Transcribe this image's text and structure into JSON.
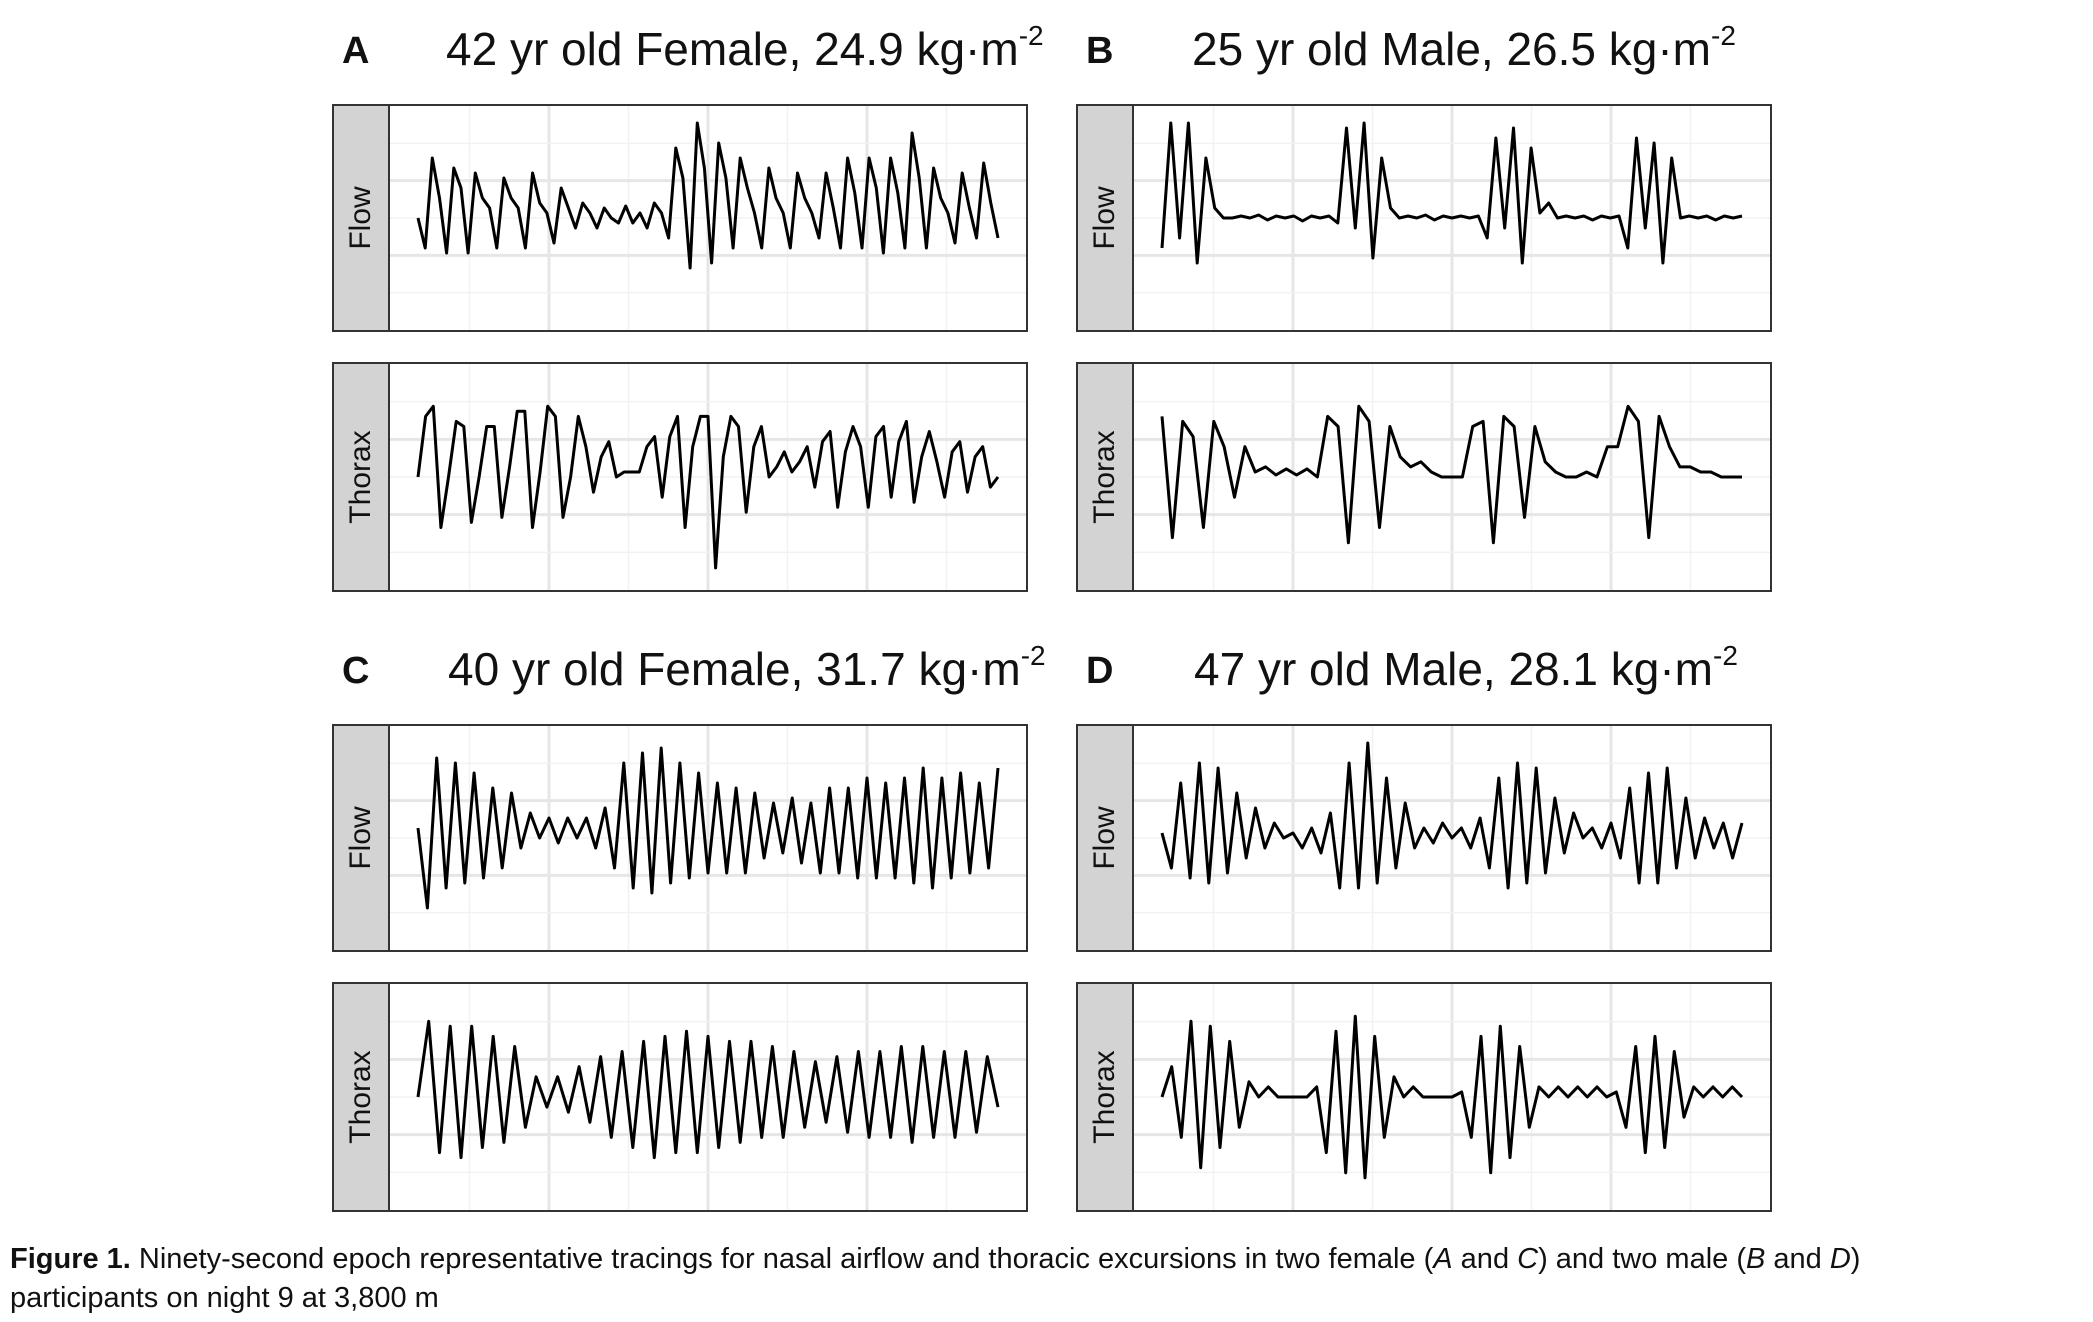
{
  "caption": {
    "label": "Figure 1.",
    "text_1": " Ninety-second epoch representative tracings for nasal airflow and thoracic excursions in two female (",
    "a": "A",
    "and_1": " and ",
    "c": "C",
    "text_2": ") and two male (",
    "b": "B",
    "and_2": " and ",
    "d": "D",
    "text_3": ")",
    "text_4": "participants on night 9 at 3,800 m"
  },
  "chart_data": [
    {
      "type": "line",
      "panel": "A",
      "title": "42 yr old Female, 24.9 kg·m",
      "title_sup": "-2",
      "facets": [
        {
          "label": "Flow",
          "series": [
            0,
            -0.3,
            0.6,
            0.2,
            -0.35,
            0.5,
            0.3,
            -0.35,
            0.45,
            0.2,
            0.1,
            -0.3,
            0.4,
            0.2,
            0.1,
            -0.3,
            0.45,
            0.15,
            0.05,
            -0.25,
            0.3,
            0.1,
            -0.1,
            0.15,
            0.05,
            -0.1,
            0.1,
            0,
            -0.05,
            0.12,
            -0.05,
            0.05,
            -0.1,
            0.15,
            0.05,
            -0.2,
            0.7,
            0.4,
            -0.5,
            0.95,
            0.5,
            -0.45,
            0.75,
            0.4,
            -0.3,
            0.6,
            0.3,
            0.05,
            -0.3,
            0.5,
            0.2,
            0.05,
            -0.3,
            0.45,
            0.2,
            0.05,
            -0.2,
            0.45,
            0.1,
            -0.3,
            0.6,
            0.25,
            -0.3,
            0.6,
            0.3,
            -0.35,
            0.6,
            0.25,
            -0.3,
            0.85,
            0.4,
            -0.3,
            0.5,
            0.2,
            0.05,
            -0.25,
            0.45,
            0.1,
            -0.2,
            0.55,
            0.15,
            -0.2
          ]
        },
        {
          "label": "Thorax",
          "series": [
            0,
            0.6,
            0.7,
            -0.5,
            0,
            0.55,
            0.5,
            -0.45,
            0,
            0.5,
            0.5,
            -0.4,
            0.1,
            0.65,
            0.65,
            -0.5,
            0.05,
            0.7,
            0.6,
            -0.4,
            0,
            0.6,
            0.3,
            -0.15,
            0.2,
            0.35,
            0,
            0.05,
            0.05,
            0.05,
            0.3,
            0.4,
            -0.2,
            0.4,
            0.6,
            -0.5,
            0.3,
            0.6,
            0.6,
            -0.9,
            0.2,
            0.6,
            0.5,
            -0.35,
            0.3,
            0.5,
            0,
            0.1,
            0.25,
            0.05,
            0.15,
            0.3,
            -0.1,
            0.35,
            0.45,
            -0.3,
            0.25,
            0.5,
            0.3,
            -0.3,
            0.4,
            0.5,
            -0.2,
            0.35,
            0.55,
            -0.25,
            0.2,
            0.45,
            0.15,
            -0.2,
            0.25,
            0.35,
            -0.15,
            0.2,
            0.3,
            -0.1,
            0
          ]
        }
      ]
    },
    {
      "type": "line",
      "panel": "B",
      "title": "25 yr old Male, 26.5 kg·m",
      "title_sup": "-2",
      "facets": [
        {
          "label": "Flow",
          "series": [
            -0.3,
            0.95,
            -0.2,
            0.95,
            -0.45,
            0.6,
            0.1,
            0,
            0,
            0.02,
            0,
            0.03,
            -0.02,
            0.02,
            0,
            0.02,
            -0.03,
            0.02,
            0,
            0.02,
            -0.05,
            0.9,
            -0.1,
            0.95,
            -0.4,
            0.6,
            0.1,
            0,
            0.02,
            0,
            0.03,
            -0.02,
            0.02,
            0,
            0.02,
            0,
            0.02,
            -0.2,
            0.8,
            -0.1,
            0.9,
            -0.45,
            0.7,
            0.05,
            0.15,
            0,
            0.02,
            0,
            0.02,
            -0.02,
            0.02,
            0,
            0.02,
            -0.3,
            0.8,
            -0.1,
            0.75,
            -0.45,
            0.6,
            0,
            0.02,
            0,
            0.02,
            -0.02,
            0.02,
            0,
            0.02
          ]
        },
        {
          "label": "Thorax",
          "series": [
            0.6,
            -0.6,
            0.55,
            0.4,
            -0.5,
            0.55,
            0.3,
            -0.2,
            0.3,
            0.05,
            0.1,
            0.02,
            0.08,
            0.02,
            0.08,
            0,
            0.6,
            0.5,
            -0.65,
            0.7,
            0.55,
            -0.5,
            0.5,
            0.2,
            0.1,
            0.15,
            0.05,
            0,
            0,
            0,
            0.5,
            0.55,
            -0.65,
            0.6,
            0.5,
            -0.4,
            0.5,
            0.15,
            0.05,
            0,
            0,
            0.05,
            0,
            0.3,
            0.3,
            0.7,
            0.55,
            -0.6,
            0.6,
            0.3,
            0.1,
            0.1,
            0.05,
            0.05,
            0,
            0,
            0
          ]
        }
      ]
    },
    {
      "type": "line",
      "panel": "C",
      "title": "40 yr old Female, 31.7 kg·m",
      "title_sup": "-2",
      "facets": [
        {
          "label": "Flow",
          "series": [
            0.1,
            -0.7,
            0.8,
            -0.5,
            0.75,
            -0.45,
            0.65,
            -0.4,
            0.5,
            -0.3,
            0.45,
            -0.1,
            0.25,
            0,
            0.2,
            -0.05,
            0.2,
            0,
            0.2,
            -0.1,
            0.3,
            -0.3,
            0.75,
            -0.5,
            0.85,
            -0.55,
            0.9,
            -0.45,
            0.75,
            -0.4,
            0.65,
            -0.35,
            0.55,
            -0.35,
            0.5,
            -0.35,
            0.45,
            -0.2,
            0.35,
            -0.15,
            0.4,
            -0.25,
            0.35,
            -0.35,
            0.5,
            -0.35,
            0.5,
            -0.4,
            0.6,
            -0.4,
            0.55,
            -0.4,
            0.6,
            -0.45,
            0.7,
            -0.5,
            0.6,
            -0.4,
            0.65,
            -0.35,
            0.55,
            -0.3,
            0.7
          ]
        },
        {
          "label": "Thorax",
          "series": [
            0,
            0.75,
            -0.55,
            0.7,
            -0.6,
            0.7,
            -0.5,
            0.6,
            -0.45,
            0.5,
            -0.3,
            0.2,
            -0.1,
            0.2,
            -0.15,
            0.3,
            -0.25,
            0.4,
            -0.4,
            0.45,
            -0.5,
            0.55,
            -0.6,
            0.6,
            -0.55,
            0.65,
            -0.55,
            0.6,
            -0.5,
            0.55,
            -0.45,
            0.55,
            -0.4,
            0.5,
            -0.4,
            0.45,
            -0.3,
            0.35,
            -0.25,
            0.4,
            -0.35,
            0.45,
            -0.4,
            0.45,
            -0.4,
            0.5,
            -0.45,
            0.5,
            -0.4,
            0.45,
            -0.4,
            0.45,
            -0.35,
            0.4,
            -0.1
          ]
        }
      ]
    },
    {
      "type": "line",
      "panel": "D",
      "title": "47 yr old Male, 28.1 kg·m",
      "title_sup": "-2",
      "facets": [
        {
          "label": "Flow",
          "series": [
            0.05,
            -0.3,
            0.55,
            -0.4,
            0.75,
            -0.45,
            0.7,
            -0.35,
            0.45,
            -0.2,
            0.3,
            -0.1,
            0.15,
            0,
            0.05,
            -0.1,
            0.1,
            -0.15,
            0.25,
            -0.5,
            0.75,
            -0.5,
            0.95,
            -0.45,
            0.6,
            -0.3,
            0.35,
            -0.1,
            0.1,
            -0.05,
            0.15,
            0,
            0.1,
            -0.1,
            0.2,
            -0.3,
            0.6,
            -0.5,
            0.75,
            -0.45,
            0.7,
            -0.35,
            0.4,
            -0.15,
            0.25,
            0,
            0.1,
            -0.1,
            0.15,
            -0.2,
            0.5,
            -0.45,
            0.65,
            -0.45,
            0.7,
            -0.3,
            0.4,
            -0.2,
            0.2,
            -0.1,
            0.15,
            -0.2,
            0.15
          ]
        },
        {
          "label": "Thorax",
          "series": [
            0,
            0.3,
            -0.4,
            0.75,
            -0.7,
            0.7,
            -0.5,
            0.55,
            -0.3,
            0.15,
            0,
            0.1,
            0,
            0,
            0,
            0,
            0.1,
            -0.55,
            0.65,
            -0.75,
            0.8,
            -0.8,
            0.6,
            -0.4,
            0.2,
            0,
            0.1,
            0,
            0,
            0,
            0,
            0.05,
            -0.4,
            0.6,
            -0.75,
            0.7,
            -0.6,
            0.5,
            -0.3,
            0.1,
            0,
            0.1,
            0,
            0.1,
            0,
            0.1,
            0,
            0.05,
            -0.3,
            0.5,
            -0.55,
            0.6,
            -0.5,
            0.45,
            -0.2,
            0.1,
            0,
            0.1,
            0,
            0.1,
            0
          ]
        }
      ]
    }
  ]
}
